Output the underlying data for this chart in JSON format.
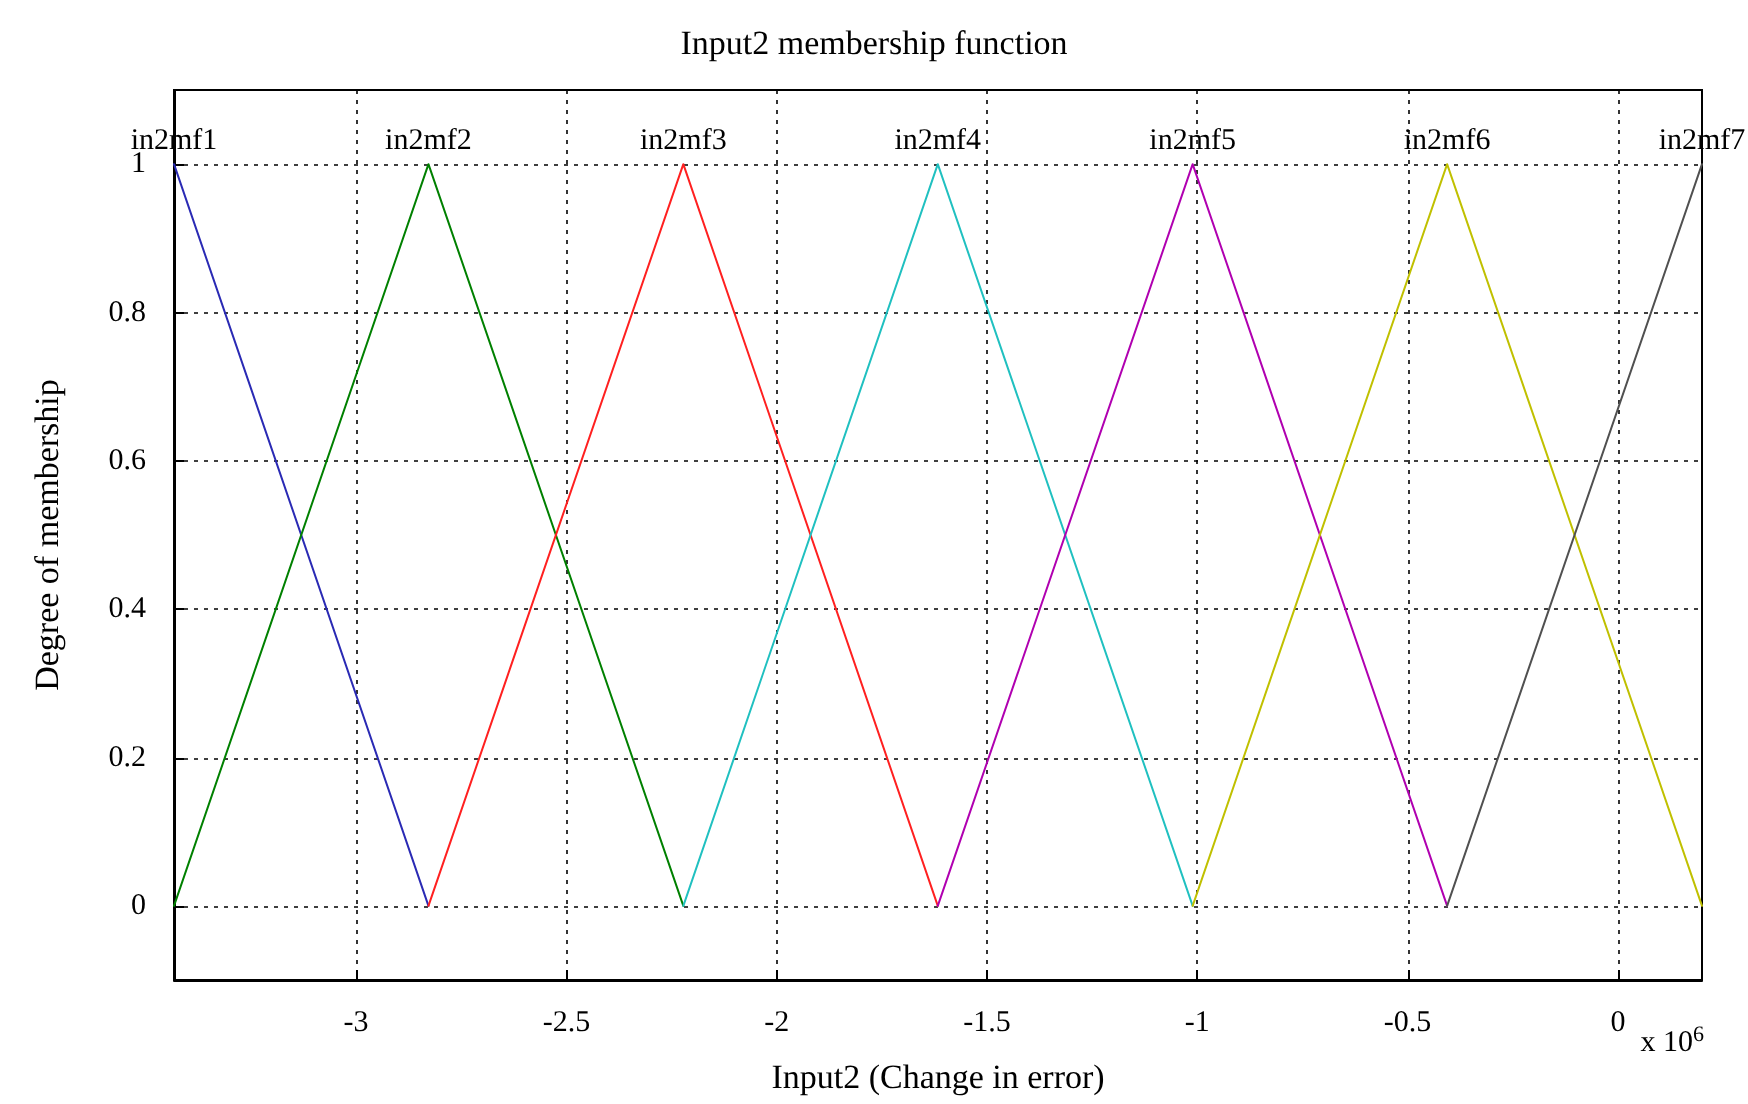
{
  "chart_data": {
    "type": "line",
    "title": "Input2 membership function",
    "xlabel": "Input2 (Change in error)",
    "ylabel": "Degree of membership",
    "annotations": [
      "x 10$^{6}$"
    ],
    "series": [
      {
        "name": "in2mf1",
        "color": "#2a2ab4",
        "x": [
          -3.433,
          -2.828
        ],
        "values": [
          1,
          0
        ]
      },
      {
        "name": "in2mf2",
        "color": "#008000",
        "x": [
          -3.433,
          -2.828,
          -2.222
        ],
        "values": [
          0,
          1,
          0
        ]
      },
      {
        "name": "in2mf3",
        "color": "#ff2020",
        "x": [
          -2.828,
          -2.222,
          -1.617
        ],
        "values": [
          0,
          1,
          0
        ]
      },
      {
        "name": "in2mf4",
        "color": "#20c0c0",
        "x": [
          -2.222,
          -1.617,
          -1.011
        ],
        "values": [
          0,
          1,
          0
        ]
      },
      {
        "name": "in2mf5",
        "color": "#b000b0",
        "x": [
          -1.617,
          -1.011,
          -0.406
        ],
        "values": [
          0,
          1,
          0
        ]
      },
      {
        "name": "in2mf6",
        "color": "#c0c000",
        "x": [
          -1.011,
          -0.406,
          0.2
        ],
        "values": [
          0,
          1,
          0
        ]
      },
      {
        "name": "in2mf7",
        "color": "#505050",
        "x": [
          -0.406,
          0.2
        ],
        "values": [
          0,
          1
        ]
      }
    ],
    "xlim": [
      -3.433,
      0.2
    ],
    "xticks": [
      -3,
      -2.5,
      -2,
      -1.5,
      -1,
      -0.5,
      0
    ],
    "ylim": [
      -0.1,
      1.1
    ],
    "yticks": [
      0,
      0.2,
      0.4,
      0.6,
      0.8,
      1
    ],
    "grid": true,
    "legend": false,
    "marker": "none",
    "line_style": "solid"
  }
}
